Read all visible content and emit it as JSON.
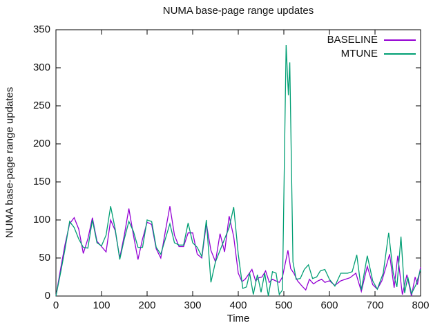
{
  "window": {
    "background": "#ffffff"
  },
  "colors": {
    "axis": "#000000",
    "text": "#111111",
    "baseline": "#9400d3",
    "mtune": "#009e73"
  },
  "chart_data": {
    "type": "line",
    "title": "NUMA base-page range updates",
    "xlabel": "Time",
    "ylabel": "NUMA base-page range updates",
    "xlim": [
      0,
      800
    ],
    "ylim": [
      0,
      350
    ],
    "x_ticks": [
      0,
      100,
      200,
      300,
      400,
      500,
      600,
      700,
      800
    ],
    "y_ticks": [
      0,
      50,
      100,
      150,
      200,
      250,
      300,
      350
    ],
    "grid": false,
    "legend_position": "top-right-inside",
    "series": [
      {
        "name": "BASELINE",
        "color": "#9400d3",
        "points": [
          [
            0,
            0
          ],
          [
            10,
            35
          ],
          [
            20,
            68
          ],
          [
            30,
            95
          ],
          [
            40,
            103
          ],
          [
            50,
            88
          ],
          [
            60,
            56
          ],
          [
            70,
            75
          ],
          [
            80,
            103
          ],
          [
            90,
            72
          ],
          [
            100,
            65
          ],
          [
            110,
            58
          ],
          [
            120,
            100
          ],
          [
            130,
            86
          ],
          [
            140,
            50
          ],
          [
            150,
            80
          ],
          [
            160,
            115
          ],
          [
            170,
            80
          ],
          [
            180,
            48
          ],
          [
            190,
            75
          ],
          [
            200,
            97
          ],
          [
            210,
            94
          ],
          [
            220,
            62
          ],
          [
            230,
            50
          ],
          [
            240,
            85
          ],
          [
            250,
            118
          ],
          [
            260,
            80
          ],
          [
            270,
            65
          ],
          [
            280,
            65
          ],
          [
            290,
            83
          ],
          [
            300,
            83
          ],
          [
            310,
            55
          ],
          [
            320,
            50
          ],
          [
            330,
            95
          ],
          [
            340,
            60
          ],
          [
            350,
            45
          ],
          [
            360,
            82
          ],
          [
            370,
            58
          ],
          [
            380,
            105
          ],
          [
            390,
            78
          ],
          [
            400,
            30
          ],
          [
            408,
            19
          ],
          [
            415,
            22
          ],
          [
            422,
            28
          ],
          [
            430,
            35
          ],
          [
            438,
            20
          ],
          [
            445,
            24
          ],
          [
            452,
            25
          ],
          [
            460,
            33
          ],
          [
            468,
            18
          ],
          [
            475,
            22
          ],
          [
            482,
            20
          ],
          [
            490,
            18
          ],
          [
            497,
            25
          ],
          [
            509,
            60
          ],
          [
            515,
            36
          ],
          [
            522,
            30
          ],
          [
            530,
            20
          ],
          [
            540,
            13
          ],
          [
            548,
            8
          ],
          [
            556,
            22
          ],
          [
            565,
            16
          ],
          [
            575,
            20
          ],
          [
            583,
            22
          ],
          [
            590,
            18
          ],
          [
            600,
            20
          ],
          [
            612,
            14
          ],
          [
            625,
            20
          ],
          [
            635,
            22
          ],
          [
            645,
            24
          ],
          [
            658,
            30
          ],
          [
            670,
            6
          ],
          [
            683,
            39
          ],
          [
            695,
            15
          ],
          [
            705,
            9
          ],
          [
            715,
            20
          ],
          [
            725,
            40
          ],
          [
            732,
            55
          ],
          [
            742,
            11
          ],
          [
            750,
            53
          ],
          [
            760,
            2
          ],
          [
            770,
            28
          ],
          [
            780,
            0
          ],
          [
            788,
            25
          ],
          [
            793,
            15
          ],
          [
            800,
            38
          ]
        ]
      },
      {
        "name": "MTUNE",
        "color": "#009e73",
        "points": [
          [
            0,
            0
          ],
          [
            10,
            30
          ],
          [
            20,
            62
          ],
          [
            30,
            98
          ],
          [
            40,
            90
          ],
          [
            50,
            75
          ],
          [
            60,
            64
          ],
          [
            70,
            63
          ],
          [
            80,
            100
          ],
          [
            90,
            70
          ],
          [
            100,
            66
          ],
          [
            110,
            80
          ],
          [
            120,
            118
          ],
          [
            130,
            88
          ],
          [
            140,
            48
          ],
          [
            150,
            75
          ],
          [
            160,
            98
          ],
          [
            170,
            85
          ],
          [
            180,
            64
          ],
          [
            190,
            64
          ],
          [
            200,
            100
          ],
          [
            210,
            98
          ],
          [
            220,
            64
          ],
          [
            230,
            55
          ],
          [
            240,
            75
          ],
          [
            250,
            95
          ],
          [
            260,
            70
          ],
          [
            270,
            67
          ],
          [
            280,
            67
          ],
          [
            290,
            96
          ],
          [
            300,
            70
          ],
          [
            310,
            64
          ],
          [
            320,
            52
          ],
          [
            330,
            100
          ],
          [
            340,
            18
          ],
          [
            350,
            45
          ],
          [
            360,
            60
          ],
          [
            370,
            75
          ],
          [
            380,
            90
          ],
          [
            390,
            117
          ],
          [
            400,
            55
          ],
          [
            410,
            10
          ],
          [
            418,
            12
          ],
          [
            425,
            30
          ],
          [
            433,
            2
          ],
          [
            442,
            28
          ],
          [
            450,
            5
          ],
          [
            458,
            30
          ],
          [
            466,
            0
          ],
          [
            475,
            32
          ],
          [
            483,
            30
          ],
          [
            490,
            2
          ],
          [
            497,
            8
          ],
          [
            505,
            330
          ],
          [
            510,
            264
          ],
          [
            513,
            307
          ],
          [
            520,
            45
          ],
          [
            527,
            22
          ],
          [
            536,
            23
          ],
          [
            545,
            35
          ],
          [
            554,
            41
          ],
          [
            563,
            23
          ],
          [
            572,
            25
          ],
          [
            580,
            33
          ],
          [
            590,
            35
          ],
          [
            600,
            22
          ],
          [
            612,
            13
          ],
          [
            625,
            30
          ],
          [
            640,
            30
          ],
          [
            650,
            32
          ],
          [
            660,
            54
          ],
          [
            670,
            8
          ],
          [
            683,
            53
          ],
          [
            695,
            20
          ],
          [
            705,
            9
          ],
          [
            718,
            30
          ],
          [
            730,
            83
          ],
          [
            740,
            30
          ],
          [
            748,
            12
          ],
          [
            757,
            78
          ],
          [
            765,
            4
          ],
          [
            772,
            25
          ],
          [
            780,
            3
          ],
          [
            790,
            15
          ],
          [
            800,
            35
          ]
        ]
      }
    ]
  }
}
